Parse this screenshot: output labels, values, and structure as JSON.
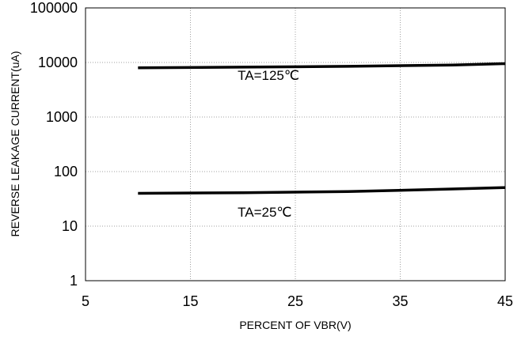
{
  "chart_data": {
    "type": "line",
    "xlabel": "PERCENT OF VBR(V)",
    "ylabel": "REVERSE LEAKAGE CURRENT(uA)",
    "xlim": [
      5,
      45
    ],
    "ylim": [
      1,
      100000
    ],
    "yscale": "log",
    "grid": true,
    "xticks": [
      "5",
      "15",
      "25",
      "35",
      "45"
    ],
    "yticks": [
      "1",
      "10",
      "100",
      "1000",
      "10000",
      "100000"
    ],
    "series": [
      {
        "x": [
          10,
          20,
          30,
          40,
          45
        ],
        "values": [
          8000,
          8200,
          8500,
          9000,
          9500
        ]
      },
      {
        "x": [
          10,
          20,
          30,
          40,
          45
        ],
        "values": [
          40,
          41,
          43,
          48,
          51
        ]
      }
    ],
    "annotations": [
      {
        "text": "TA=125℃",
        "x": 19.5,
        "y": 4800
      },
      {
        "text": "TA=25℃",
        "x": 19.5,
        "y": 15
      }
    ]
  }
}
